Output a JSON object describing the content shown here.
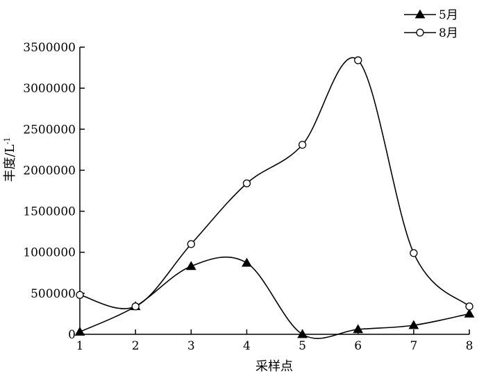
{
  "chart_data": {
    "type": "line",
    "xlabel": "采样点",
    "ylabel": "丰度/L",
    "ylabel_superscript": "-1",
    "x": [
      1,
      2,
      3,
      4,
      5,
      6,
      7,
      8
    ],
    "xlim": [
      1,
      8
    ],
    "ylim": [
      0,
      3500000
    ],
    "yticks": [
      0,
      500000,
      1000000,
      1500000,
      2000000,
      2500000,
      3000000,
      3500000
    ],
    "ytick_labels": [
      "0",
      "500000",
      "1000000",
      "1500000",
      "2000000",
      "2500000",
      "3000000",
      "3500000"
    ],
    "xtick_labels": [
      "1",
      "2",
      "3",
      "4",
      "5",
      "6",
      "7",
      "8"
    ],
    "grid": false,
    "legend_position": "top-right",
    "series": [
      {
        "name": "5月",
        "marker": "filled-triangle",
        "values": [
          30000,
          340000,
          830000,
          870000,
          0,
          60000,
          110000,
          250000
        ]
      },
      {
        "name": "8月",
        "marker": "open-circle",
        "values": [
          480000,
          340000,
          1100000,
          1840000,
          2310000,
          3340000,
          990000,
          340000
        ]
      }
    ]
  }
}
